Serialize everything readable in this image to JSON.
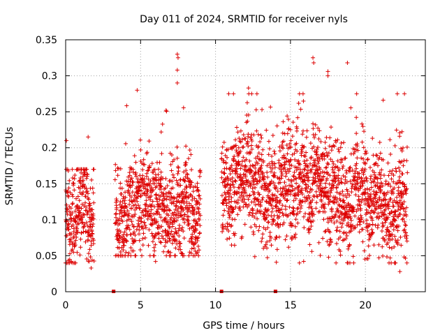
{
  "chart_data": {
    "type": "scatter",
    "title": "Day 011 of 2024, SRMTID for receiver nyls",
    "xlabel": "GPS time / hours",
    "ylabel": "SRMTID / TECUs",
    "xlim": [
      0,
      24
    ],
    "ylim": [
      0,
      0.35
    ],
    "xticks": [
      0,
      5,
      10,
      15,
      20
    ],
    "xtick_labels": [
      "0",
      "5",
      "10",
      "15",
      "20"
    ],
    "yticks": [
      0,
      0.05,
      0.1,
      0.15,
      0.2,
      0.25,
      0.3,
      0.35
    ],
    "ytick_labels": [
      "0",
      "0.05",
      "0.1",
      "0.15",
      "0.2",
      "0.25",
      "0.3",
      "0.35"
    ],
    "grid": true,
    "marker": "+",
    "color": "#dd0000",
    "gap_markers_x": [
      3.2,
      10.4,
      14.0
    ],
    "segments": [
      {
        "t_start": 0.0,
        "t_end": 1.9,
        "center": 0.11,
        "spread": 0.045,
        "min": 0.03,
        "max": 0.22,
        "density": 140
      },
      {
        "t_start": 3.3,
        "t_end": 9.0,
        "center": 0.12,
        "spread": 0.04,
        "min": 0.04,
        "max": 0.33,
        "density": 140
      },
      {
        "t_start": 10.4,
        "t_end": 22.8,
        "center": 0.14,
        "spread": 0.045,
        "min": 0.03,
        "max": 0.325,
        "density": 140
      }
    ],
    "notable_points": [
      {
        "x": 7.45,
        "y": 0.33
      },
      {
        "x": 7.5,
        "y": 0.325
      },
      {
        "x": 7.45,
        "y": 0.308
      },
      {
        "x": 7.45,
        "y": 0.29
      },
      {
        "x": 16.5,
        "y": 0.325
      },
      {
        "x": 16.55,
        "y": 0.318
      },
      {
        "x": 18.8,
        "y": 0.318
      },
      {
        "x": 17.5,
        "y": 0.306
      },
      {
        "x": 17.5,
        "y": 0.3
      },
      {
        "x": 12.2,
        "y": 0.283
      },
      {
        "x": 6.7,
        "y": 0.252
      },
      {
        "x": 1.5,
        "y": 0.215
      },
      {
        "x": 0.05,
        "y": 0.21
      },
      {
        "x": 1.7,
        "y": 0.033
      },
      {
        "x": 22.3,
        "y": 0.028
      },
      {
        "x": 15.6,
        "y": 0.04
      },
      {
        "x": 6.0,
        "y": 0.042
      }
    ]
  }
}
